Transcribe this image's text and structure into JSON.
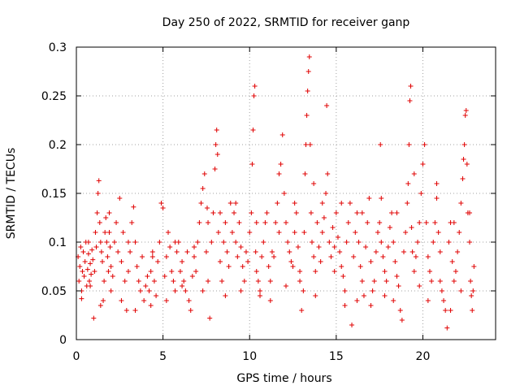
{
  "chart_data": {
    "type": "scatter",
    "title": "Day 250 of 2022, SRMTID for receiver ganp",
    "xlabel": "GPS time / hours",
    "ylabel": "SRMTID / TECUs",
    "xlim": [
      0,
      24.2
    ],
    "ylim": [
      0,
      0.3
    ],
    "xticks": [
      0,
      5,
      10,
      15,
      20
    ],
    "xtick_labels": [
      "0",
      "5",
      "10",
      "15",
      "20"
    ],
    "yticks": [
      0,
      0.05,
      0.1,
      0.15,
      0.2,
      0.25,
      0.3
    ],
    "ytick_labels": [
      "0",
      "0.05",
      "0.1",
      "0.15",
      "0.2",
      "0.25",
      "0.3"
    ],
    "grid": true,
    "marker": "plus",
    "color": "#e00000",
    "series": [
      {
        "name": "SRMTID",
        "points": [
          [
            0.1,
            0.085
          ],
          [
            0.15,
            0.06
          ],
          [
            0.2,
            0.075
          ],
          [
            0.25,
            0.095
          ],
          [
            0.3,
            0.05
          ],
          [
            0.35,
            0.07
          ],
          [
            0.4,
            0.09
          ],
          [
            0.45,
            0.065
          ],
          [
            0.5,
            0.08
          ],
          [
            0.55,
            0.1
          ],
          [
            0.6,
            0.055
          ],
          [
            0.65,
            0.072
          ],
          [
            0.7,
            0.088
          ],
          [
            0.75,
            0.06
          ],
          [
            0.8,
            0.078
          ],
          [
            0.85,
            0.067
          ],
          [
            0.9,
            0.092
          ],
          [
            0.95,
            0.082
          ],
          [
            1.0,
            0.022
          ],
          [
            1.05,
            0.07
          ],
          [
            1.1,
            0.11
          ],
          [
            1.15,
            0.095
          ],
          [
            1.2,
            0.13
          ],
          [
            1.25,
            0.15
          ],
          [
            1.3,
            0.163
          ],
          [
            1.35,
            0.12
          ],
          [
            1.4,
            0.1
          ],
          [
            1.45,
            0.09
          ],
          [
            1.5,
            0.08
          ],
          [
            1.55,
            0.04
          ],
          [
            1.6,
            0.06
          ],
          [
            1.65,
            0.11
          ],
          [
            1.7,
            0.125
          ],
          [
            1.75,
            0.1
          ],
          [
            1.8,
            0.085
          ],
          [
            1.85,
            0.07
          ],
          [
            1.9,
            0.13
          ],
          [
            1.95,
            0.095
          ],
          [
            2.0,
            0.075
          ],
          [
            2.1,
            0.065
          ],
          [
            2.2,
            0.1
          ],
          [
            2.3,
            0.12
          ],
          [
            2.4,
            0.09
          ],
          [
            2.5,
            0.145
          ],
          [
            2.6,
            0.08
          ],
          [
            2.7,
            0.11
          ],
          [
            2.8,
            0.06
          ],
          [
            2.9,
            0.03
          ],
          [
            3.0,
            0.07
          ],
          [
            3.1,
            0.09
          ],
          [
            3.2,
            0.12
          ],
          [
            3.3,
            0.136
          ],
          [
            3.4,
            0.1
          ],
          [
            3.5,
            0.075
          ],
          [
            3.6,
            0.06
          ],
          [
            3.7,
            0.05
          ],
          [
            3.8,
            0.085
          ],
          [
            3.9,
            0.04
          ],
          [
            4.0,
            0.055
          ],
          [
            4.1,
            0.065
          ],
          [
            4.2,
            0.05
          ],
          [
            4.3,
            0.07
          ],
          [
            4.4,
            0.09
          ],
          [
            4.5,
            0.06
          ],
          [
            4.6,
            0.045
          ],
          [
            4.7,
            0.08
          ],
          [
            4.8,
            0.1
          ],
          [
            4.9,
            0.14
          ],
          [
            5.0,
            0.135
          ],
          [
            5.1,
            0.065
          ],
          [
            5.2,
            0.085
          ],
          [
            5.3,
            0.11
          ],
          [
            5.4,
            0.095
          ],
          [
            5.5,
            0.07
          ],
          [
            5.6,
            0.06
          ],
          [
            5.7,
            0.05
          ],
          [
            5.8,
            0.09
          ],
          [
            5.9,
            0.1
          ],
          [
            6.0,
            0.07
          ],
          [
            6.1,
            0.08
          ],
          [
            6.2,
            0.06
          ],
          [
            6.3,
            0.05
          ],
          [
            6.4,
            0.09
          ],
          [
            6.5,
            0.04
          ],
          [
            6.6,
            0.03
          ],
          [
            6.7,
            0.065
          ],
          [
            6.8,
            0.085
          ],
          [
            6.9,
            0.07
          ],
          [
            7.0,
            0.1
          ],
          [
            7.1,
            0.12
          ],
          [
            7.2,
            0.14
          ],
          [
            7.3,
            0.155
          ],
          [
            7.4,
            0.17
          ],
          [
            7.5,
            0.09
          ],
          [
            7.6,
            0.06
          ],
          [
            7.7,
            0.022
          ],
          [
            7.8,
            0.1
          ],
          [
            7.9,
            0.13
          ],
          [
            8.0,
            0.175
          ],
          [
            8.05,
            0.2
          ],
          [
            8.1,
            0.215
          ],
          [
            8.15,
            0.19
          ],
          [
            8.2,
            0.11
          ],
          [
            8.3,
            0.08
          ],
          [
            8.4,
            0.06
          ],
          [
            8.5,
            0.1
          ],
          [
            8.6,
            0.12
          ],
          [
            8.7,
            0.09
          ],
          [
            8.8,
            0.075
          ],
          [
            8.9,
            0.14
          ],
          [
            9.0,
            0.11
          ],
          [
            9.1,
            0.13
          ],
          [
            9.2,
            0.1
          ],
          [
            9.3,
            0.085
          ],
          [
            9.4,
            0.12
          ],
          [
            9.5,
            0.095
          ],
          [
            9.6,
            0.075
          ],
          [
            9.7,
            0.06
          ],
          [
            9.8,
            0.09
          ],
          [
            9.9,
            0.08
          ],
          [
            10.0,
            0.11
          ],
          [
            10.1,
            0.13
          ],
          [
            10.15,
            0.18
          ],
          [
            10.2,
            0.215
          ],
          [
            10.25,
            0.25
          ],
          [
            10.3,
            0.26
          ],
          [
            10.35,
            0.09
          ],
          [
            10.4,
            0.07
          ],
          [
            10.5,
            0.06
          ],
          [
            10.6,
            0.05
          ],
          [
            10.7,
            0.085
          ],
          [
            10.8,
            0.1
          ],
          [
            10.9,
            0.12
          ],
          [
            11.0,
            0.13
          ],
          [
            11.1,
            0.075
          ],
          [
            11.2,
            0.06
          ],
          [
            11.3,
            0.09
          ],
          [
            11.4,
            0.085
          ],
          [
            11.5,
            0.12
          ],
          [
            11.6,
            0.14
          ],
          [
            11.7,
            0.17
          ],
          [
            11.8,
            0.18
          ],
          [
            11.9,
            0.21
          ],
          [
            12.0,
            0.15
          ],
          [
            12.1,
            0.12
          ],
          [
            12.2,
            0.1
          ],
          [
            12.3,
            0.09
          ],
          [
            12.4,
            0.08
          ],
          [
            12.5,
            0.075
          ],
          [
            12.6,
            0.11
          ],
          [
            12.7,
            0.13
          ],
          [
            12.8,
            0.095
          ],
          [
            12.9,
            0.07
          ],
          [
            13.0,
            0.03
          ],
          [
            13.1,
            0.05
          ],
          [
            13.15,
            0.11
          ],
          [
            13.2,
            0.17
          ],
          [
            13.25,
            0.2
          ],
          [
            13.3,
            0.23
          ],
          [
            13.35,
            0.255
          ],
          [
            13.4,
            0.275
          ],
          [
            13.45,
            0.29
          ],
          [
            13.5,
            0.2
          ],
          [
            13.55,
            0.13
          ],
          [
            13.6,
            0.1
          ],
          [
            13.7,
            0.085
          ],
          [
            13.8,
            0.07
          ],
          [
            13.9,
            0.12
          ],
          [
            14.0,
            0.095
          ],
          [
            14.1,
            0.08
          ],
          [
            14.2,
            0.11
          ],
          [
            14.3,
            0.125
          ],
          [
            14.4,
            0.15
          ],
          [
            14.45,
            0.24
          ],
          [
            14.5,
            0.17
          ],
          [
            14.6,
            0.1
          ],
          [
            14.7,
            0.085
          ],
          [
            14.8,
            0.115
          ],
          [
            14.9,
            0.095
          ],
          [
            15.0,
            0.13
          ],
          [
            15.1,
            0.105
          ],
          [
            15.2,
            0.09
          ],
          [
            15.3,
            0.075
          ],
          [
            15.4,
            0.065
          ],
          [
            15.5,
            0.05
          ],
          [
            15.6,
            0.1
          ],
          [
            15.7,
            0.12
          ],
          [
            15.8,
            0.14
          ],
          [
            15.9,
            0.015
          ],
          [
            16.0,
            0.085
          ],
          [
            16.1,
            0.11
          ],
          [
            16.2,
            0.13
          ],
          [
            16.3,
            0.1
          ],
          [
            16.4,
            0.075
          ],
          [
            16.5,
            0.06
          ],
          [
            16.6,
            0.045
          ],
          [
            16.7,
            0.095
          ],
          [
            16.8,
            0.12
          ],
          [
            16.9,
            0.145
          ],
          [
            17.0,
            0.08
          ],
          [
            17.1,
            0.05
          ],
          [
            17.2,
            0.06
          ],
          [
            17.3,
            0.09
          ],
          [
            17.4,
            0.11
          ],
          [
            17.5,
            0.12
          ],
          [
            17.6,
            0.1
          ],
          [
            17.7,
            0.085
          ],
          [
            17.8,
            0.07
          ],
          [
            17.9,
            0.06
          ],
          [
            18.0,
            0.095
          ],
          [
            18.1,
            0.115
          ],
          [
            18.2,
            0.13
          ],
          [
            18.3,
            0.1
          ],
          [
            18.4,
            0.08
          ],
          [
            18.5,
            0.065
          ],
          [
            18.6,
            0.055
          ],
          [
            18.7,
            0.03
          ],
          [
            18.8,
            0.02
          ],
          [
            18.9,
            0.09
          ],
          [
            19.0,
            0.11
          ],
          [
            19.1,
            0.14
          ],
          [
            19.15,
            0.16
          ],
          [
            19.2,
            0.2
          ],
          [
            19.25,
            0.245
          ],
          [
            19.3,
            0.26
          ],
          [
            19.35,
            0.115
          ],
          [
            19.4,
            0.09
          ],
          [
            19.5,
            0.07
          ],
          [
            19.6,
            0.085
          ],
          [
            19.7,
            0.1
          ],
          [
            19.8,
            0.12
          ],
          [
            19.9,
            0.15
          ],
          [
            20.0,
            0.18
          ],
          [
            20.1,
            0.2
          ],
          [
            20.2,
            0.12
          ],
          [
            20.3,
            0.085
          ],
          [
            20.4,
            0.07
          ],
          [
            20.5,
            0.06
          ],
          [
            20.6,
            0.1
          ],
          [
            20.7,
            0.12
          ],
          [
            20.8,
            0.145
          ],
          [
            20.9,
            0.11
          ],
          [
            21.0,
            0.09
          ],
          [
            21.1,
            0.05
          ],
          [
            21.2,
            0.04
          ],
          [
            21.3,
            0.03
          ],
          [
            21.4,
            0.012
          ],
          [
            21.5,
            0.1
          ],
          [
            21.6,
            0.12
          ],
          [
            21.7,
            0.08
          ],
          [
            21.8,
            0.06
          ],
          [
            21.9,
            0.07
          ],
          [
            22.0,
            0.09
          ],
          [
            22.1,
            0.11
          ],
          [
            22.2,
            0.14
          ],
          [
            22.3,
            0.165
          ],
          [
            22.35,
            0.185
          ],
          [
            22.4,
            0.2
          ],
          [
            22.45,
            0.23
          ],
          [
            22.5,
            0.235
          ],
          [
            22.55,
            0.18
          ],
          [
            22.6,
            0.13
          ],
          [
            22.7,
            0.1
          ],
          [
            22.75,
            0.06
          ],
          [
            22.8,
            0.045
          ],
          [
            22.85,
            0.03
          ],
          [
            22.9,
            0.05
          ],
          [
            22.95,
            0.075
          ],
          [
            0.3,
            0.042
          ],
          [
            0.8,
            0.055
          ],
          [
            1.4,
            0.035
          ],
          [
            2.0,
            0.05
          ],
          [
            2.6,
            0.04
          ],
          [
            3.4,
            0.03
          ],
          [
            4.3,
            0.035
          ],
          [
            5.2,
            0.04
          ],
          [
            6.1,
            0.055
          ],
          [
            7.3,
            0.05
          ],
          [
            8.6,
            0.045
          ],
          [
            9.5,
            0.05
          ],
          [
            10.6,
            0.045
          ],
          [
            11.2,
            0.04
          ],
          [
            12.1,
            0.055
          ],
          [
            12.9,
            0.06
          ],
          [
            13.8,
            0.045
          ],
          [
            14.9,
            0.07
          ],
          [
            15.5,
            0.035
          ],
          [
            16.2,
            0.04
          ],
          [
            17.0,
            0.035
          ],
          [
            17.8,
            0.045
          ],
          [
            18.3,
            0.04
          ],
          [
            19.8,
            0.055
          ],
          [
            20.3,
            0.04
          ],
          [
            21.0,
            0.06
          ],
          [
            21.6,
            0.03
          ],
          [
            22.2,
            0.05
          ],
          [
            0.7,
            0.1
          ],
          [
            1.9,
            0.11
          ],
          [
            3.0,
            0.1
          ],
          [
            4.4,
            0.085
          ],
          [
            5.7,
            0.1
          ],
          [
            6.8,
            0.095
          ],
          [
            7.6,
            0.12
          ],
          [
            8.3,
            0.13
          ],
          [
            9.2,
            0.14
          ],
          [
            10.4,
            0.12
          ],
          [
            11.7,
            0.11
          ],
          [
            12.6,
            0.14
          ],
          [
            13.7,
            0.16
          ],
          [
            14.2,
            0.14
          ],
          [
            15.3,
            0.14
          ],
          [
            16.5,
            0.13
          ],
          [
            17.6,
            0.145
          ],
          [
            18.5,
            0.13
          ],
          [
            19.5,
            0.17
          ],
          [
            20.8,
            0.16
          ],
          [
            21.8,
            0.12
          ],
          [
            22.7,
            0.13
          ],
          [
            7.55,
            0.135
          ],
          [
            17.55,
            0.2
          ]
        ]
      }
    ]
  }
}
